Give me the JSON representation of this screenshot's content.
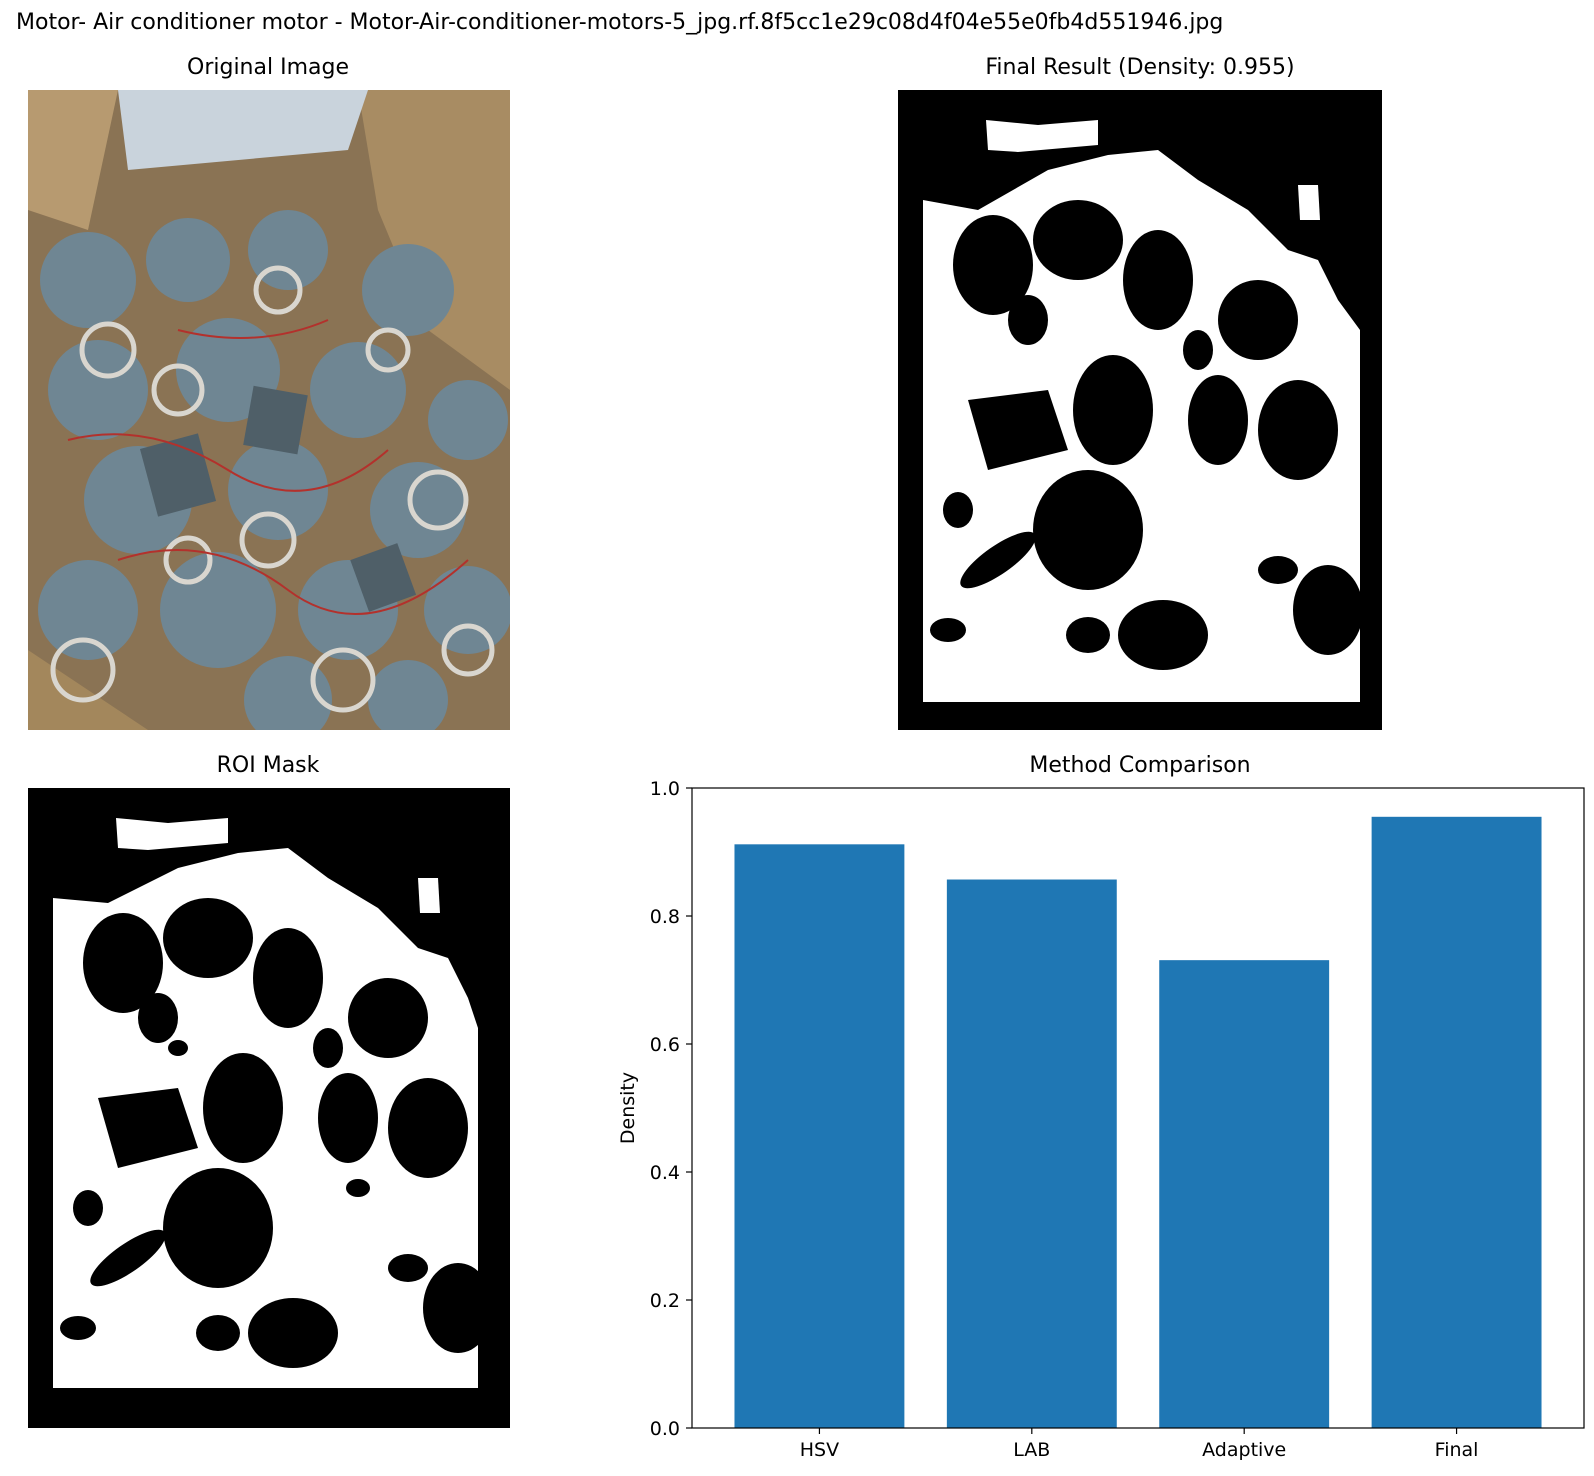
{
  "figure": {
    "title": "Motor- Air conditioner motor - Motor-Air-conditioner-motors-5_jpg.rf.8f5cc1e29c08d4f04e55e0fb4d551946.jpg"
  },
  "panels": {
    "original": {
      "title": "Original Image"
    },
    "final": {
      "title": "Final Result (Density: 0.955)"
    },
    "roi": {
      "title": "ROI Mask"
    },
    "comparison": {
      "title": "Method Comparison"
    }
  },
  "chart_data": {
    "type": "bar",
    "title": "Method Comparison",
    "xlabel": "",
    "ylabel": "Density",
    "categories": [
      "HSV",
      "LAB",
      "Adaptive",
      "Final"
    ],
    "values": [
      0.912,
      0.857,
      0.731,
      0.955
    ],
    "ylim": [
      0,
      1.0
    ],
    "yticks": [
      "0.0",
      "0.2",
      "0.4",
      "0.6",
      "0.8",
      "1.0"
    ],
    "grid": false,
    "bar_color": "#1f77b4"
  }
}
